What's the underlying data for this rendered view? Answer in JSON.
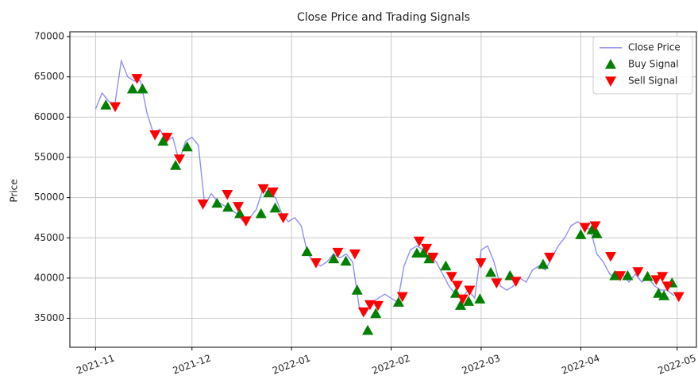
{
  "chart_data": {
    "type": "line",
    "title": "Close Price and Trading Signals",
    "ylabel": "Price",
    "xlim": [
      -8,
      187
    ],
    "xticks": [
      {
        "value": 0,
        "label": "2021-11"
      },
      {
        "value": 30,
        "label": "2021-12"
      },
      {
        "value": 61,
        "label": "2022-01"
      },
      {
        "value": 92,
        "label": "2022-02"
      },
      {
        "value": 120,
        "label": "2022-03"
      },
      {
        "value": 151,
        "label": "2022-04"
      },
      {
        "value": 181,
        "label": "2022-05"
      }
    ],
    "ylim": [
      31400,
      70600
    ],
    "yticks": [
      35000,
      40000,
      45000,
      50000,
      55000,
      60000,
      65000,
      70000
    ],
    "grid": true,
    "legend": "upper right",
    "series": [
      {
        "name": "Close Price",
        "kind": "line",
        "color": "#7b7bf0",
        "x": [
          0,
          2,
          4,
          6,
          8,
          10,
          12,
          14,
          16,
          18,
          20,
          22,
          24,
          26,
          28,
          30,
          32,
          34,
          36,
          38,
          40,
          42,
          44,
          46,
          48,
          50,
          52,
          54,
          56,
          58,
          60,
          62,
          64,
          66,
          68,
          70,
          72,
          74,
          76,
          78,
          80,
          82,
          84,
          86,
          88,
          90,
          92,
          94,
          96,
          98,
          100,
          102,
          104,
          106,
          108,
          110,
          112,
          114,
          116,
          118,
          120,
          122,
          124,
          126,
          128,
          130,
          132,
          134,
          136,
          138,
          140,
          142,
          144,
          146,
          148,
          150,
          152,
          154,
          156,
          158,
          160,
          162,
          164,
          166,
          168,
          170,
          172,
          174,
          176,
          178,
          180
        ],
        "values": [
          61000,
          63000,
          62000,
          61500,
          67000,
          65000,
          64500,
          64500,
          60500,
          58000,
          58500,
          57000,
          57500,
          54500,
          57000,
          57500,
          56500,
          49000,
          50500,
          49500,
          49000,
          48500,
          48000,
          47000,
          47500,
          48500,
          51000,
          50500,
          50000,
          48000,
          47000,
          47500,
          46500,
          43000,
          42000,
          41500,
          42000,
          43000,
          42500,
          43000,
          42000,
          36500,
          35500,
          37000,
          37500,
          38000,
          37500,
          37000,
          41500,
          43500,
          44000,
          43500,
          42500,
          42000,
          40500,
          39000,
          38000,
          37500,
          38500,
          37500,
          43500,
          44000,
          42000,
          39000,
          38500,
          39000,
          40000,
          39500,
          41000,
          41500,
          41000,
          42500,
          44000,
          45000,
          46500,
          47000,
          46500,
          46000,
          43000,
          42000,
          40500,
          40000,
          40500,
          39500,
          40500,
          39500,
          40000,
          39000,
          38500,
          38500,
          37800
        ]
      },
      {
        "name": "Buy Signal",
        "kind": "scatter",
        "marker": "up",
        "color": "#008000",
        "x": [
          3.2,
          11.5,
          14.6,
          21,
          24.9,
          28.5,
          37.8,
          41.2,
          44.9,
          51.5,
          53.9,
          55.9,
          65.8,
          74.1,
          77.9,
          81.4,
          84.7,
          87.2,
          94.3,
          100,
          102,
          103.8,
          109,
          112.1,
          113.6,
          116.1,
          119.6,
          123,
          129,
          139.3,
          151,
          154.5,
          156,
          161.6,
          165.6,
          171.8,
          175.2,
          176.9,
          179.4
        ],
        "values": [
          61500,
          63500,
          63500,
          57000,
          54000,
          56300,
          49300,
          48800,
          48000,
          48000,
          50600,
          48700,
          43300,
          42400,
          42100,
          38500,
          33500,
          35600,
          37000,
          43100,
          43100,
          42400,
          41500,
          38100,
          36600,
          37100,
          37400,
          40700,
          40300,
          41700,
          45400,
          46000,
          45500,
          40300,
          40300,
          40200,
          38100,
          37800,
          39400
        ]
      },
      {
        "name": "Sell Signal",
        "kind": "scatter",
        "marker": "down",
        "color": "#ff0000",
        "x": [
          6.1,
          12.9,
          18.5,
          22.2,
          26.1,
          33.4,
          41,
          44.4,
          46.8,
          52.2,
          55.2,
          58.4,
          68.6,
          75.4,
          80.7,
          83.4,
          85.4,
          87.9,
          95.5,
          100.7,
          103,
          105,
          110.8,
          112.6,
          114.3,
          116.4,
          119.9,
          124.8,
          130.8,
          141.3,
          152.3,
          155.5,
          160.3,
          163.3,
          168.8,
          174.5,
          176.4,
          178,
          181.5
        ],
        "values": [
          61300,
          64800,
          57800,
          57500,
          54800,
          49200,
          50400,
          48900,
          47100,
          51100,
          50700,
          47500,
          41900,
          43200,
          43000,
          35800,
          36700,
          36600,
          37700,
          44600,
          43700,
          42600,
          40200,
          39100,
          37400,
          38500,
          41900,
          39400,
          39600,
          42600,
          46300,
          46500,
          42700,
          40300,
          40800,
          39800,
          40200,
          39000,
          37700
        ]
      }
    ]
  }
}
